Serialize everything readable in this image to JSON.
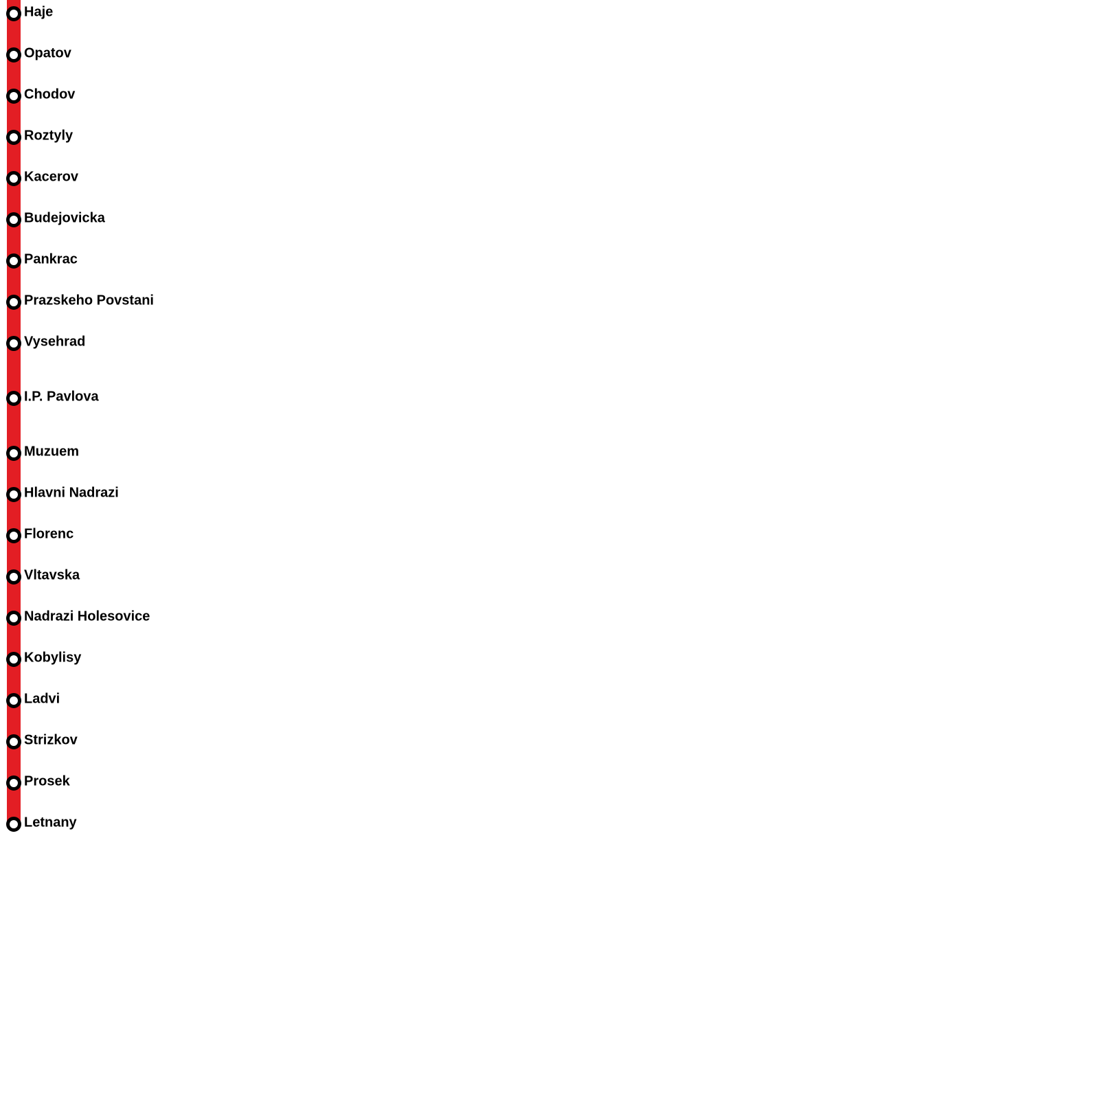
{
  "line": {
    "stations": [
      "Haje",
      "Opatov",
      "Chodov",
      "Roztyly",
      "Kacerov",
      "Budejovicka",
      "Pankrac",
      "Prazskeho Povstani",
      "Vysehrad",
      "I.P. Pavlova",
      "Muzuem",
      "Hlavni Nadrazi",
      "Florenc",
      "Vltavska",
      "Nadrazi Holesovice",
      "Kobylisy",
      "Ladvi",
      "Strizkov",
      "Prosek",
      "Letnany"
    ]
  }
}
